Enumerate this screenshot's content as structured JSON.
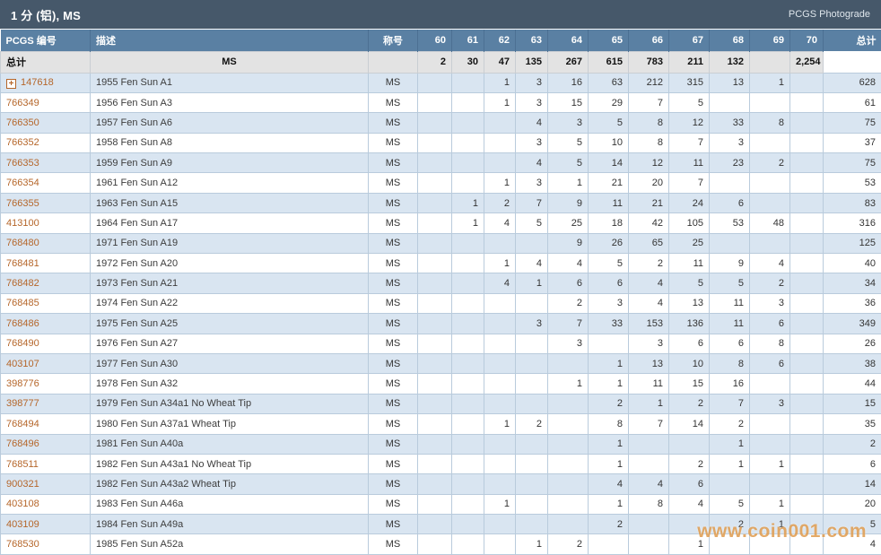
{
  "header": {
    "title": "1 分 (铝), MS",
    "right_label": "PCGS Photograde"
  },
  "icons": {
    "expander": "+"
  },
  "colors": {
    "title_bar": "#46586a",
    "column_header": "#5a80a3",
    "row_alt": "#d9e5f1",
    "totals_row": "#e3e3e3",
    "link": "#b5662a",
    "watermark": "#dc923e"
  },
  "watermark": "www.coin001.com",
  "table": {
    "columns": [
      "PCGS 编号",
      "描述",
      "称号",
      "60",
      "61",
      "62",
      "63",
      "64",
      "65",
      "66",
      "67",
      "68",
      "69",
      "70",
      "总计"
    ],
    "grade_labels": [
      "60",
      "61",
      "62",
      "63",
      "64",
      "65",
      "66",
      "67",
      "68",
      "69",
      "70"
    ],
    "totals": {
      "label": "总计",
      "designation": "MS",
      "values": [
        "",
        "2",
        "30",
        "47",
        "135",
        "267",
        "615",
        "783",
        "211",
        "132",
        ""
      ],
      "total": "2,254"
    },
    "rows": [
      {
        "pcgs": "147618",
        "expandable": true,
        "desc": "1955 Fen Sun A1",
        "designation": "MS",
        "values": [
          "",
          "",
          "1",
          "3",
          "16",
          "63",
          "212",
          "315",
          "13",
          "1",
          ""
        ],
        "total": "628"
      },
      {
        "pcgs": "766349",
        "expandable": false,
        "desc": "1956 Fen Sun A3",
        "designation": "MS",
        "values": [
          "",
          "",
          "1",
          "3",
          "15",
          "29",
          "7",
          "5",
          "",
          "",
          ""
        ],
        "total": "61"
      },
      {
        "pcgs": "766350",
        "expandable": false,
        "desc": "1957 Fen Sun A6",
        "designation": "MS",
        "values": [
          "",
          "",
          "",
          "4",
          "3",
          "5",
          "8",
          "12",
          "33",
          "8",
          ""
        ],
        "total": "75"
      },
      {
        "pcgs": "766352",
        "expandable": false,
        "desc": "1958 Fen Sun A8",
        "designation": "MS",
        "values": [
          "",
          "",
          "",
          "3",
          "5",
          "10",
          "8",
          "7",
          "3",
          "",
          ""
        ],
        "total": "37"
      },
      {
        "pcgs": "766353",
        "expandable": false,
        "desc": "1959 Fen Sun A9",
        "designation": "MS",
        "values": [
          "",
          "",
          "",
          "4",
          "5",
          "14",
          "12",
          "11",
          "23",
          "2",
          ""
        ],
        "total": "75"
      },
      {
        "pcgs": "766354",
        "expandable": false,
        "desc": "1961 Fen Sun A12",
        "designation": "MS",
        "values": [
          "",
          "",
          "1",
          "3",
          "1",
          "21",
          "20",
          "7",
          "",
          "",
          ""
        ],
        "total": "53"
      },
      {
        "pcgs": "766355",
        "expandable": false,
        "desc": "1963 Fen Sun A15",
        "designation": "MS",
        "values": [
          "",
          "1",
          "2",
          "7",
          "9",
          "11",
          "21",
          "24",
          "6",
          "",
          ""
        ],
        "total": "83"
      },
      {
        "pcgs": "413100",
        "expandable": false,
        "desc": "1964 Fen Sun A17",
        "designation": "MS",
        "values": [
          "",
          "1",
          "4",
          "5",
          "25",
          "18",
          "42",
          "105",
          "53",
          "48",
          ""
        ],
        "total": "316"
      },
      {
        "pcgs": "768480",
        "expandable": false,
        "desc": "1971 Fen Sun A19",
        "designation": "MS",
        "values": [
          "",
          "",
          "",
          "",
          "9",
          "26",
          "65",
          "25",
          "",
          "",
          ""
        ],
        "total": "125"
      },
      {
        "pcgs": "768481",
        "expandable": false,
        "desc": "1972 Fen Sun A20",
        "designation": "MS",
        "values": [
          "",
          "",
          "1",
          "4",
          "4",
          "5",
          "2",
          "11",
          "9",
          "4",
          ""
        ],
        "total": "40"
      },
      {
        "pcgs": "768482",
        "expandable": false,
        "desc": "1973 Fen Sun A21",
        "designation": "MS",
        "values": [
          "",
          "",
          "4",
          "1",
          "6",
          "6",
          "4",
          "5",
          "5",
          "2",
          ""
        ],
        "total": "34"
      },
      {
        "pcgs": "768485",
        "expandable": false,
        "desc": "1974 Fen Sun A22",
        "designation": "MS",
        "values": [
          "",
          "",
          "",
          "",
          "2",
          "3",
          "4",
          "13",
          "11",
          "3",
          ""
        ],
        "total": "36"
      },
      {
        "pcgs": "768486",
        "expandable": false,
        "desc": "1975 Fen Sun A25",
        "designation": "MS",
        "values": [
          "",
          "",
          "",
          "3",
          "7",
          "33",
          "153",
          "136",
          "11",
          "6",
          ""
        ],
        "total": "349"
      },
      {
        "pcgs": "768490",
        "expandable": false,
        "desc": "1976 Fen Sun A27",
        "designation": "MS",
        "values": [
          "",
          "",
          "",
          "",
          "3",
          "",
          "3",
          "6",
          "6",
          "8",
          ""
        ],
        "total": "26"
      },
      {
        "pcgs": "403107",
        "expandable": false,
        "desc": "1977 Fen Sun A30",
        "designation": "MS",
        "values": [
          "",
          "",
          "",
          "",
          "",
          "1",
          "13",
          "10",
          "8",
          "6",
          ""
        ],
        "total": "38"
      },
      {
        "pcgs": "398776",
        "expandable": false,
        "desc": "1978 Fen Sun A32",
        "designation": "MS",
        "values": [
          "",
          "",
          "",
          "",
          "1",
          "1",
          "11",
          "15",
          "16",
          "",
          ""
        ],
        "total": "44"
      },
      {
        "pcgs": "398777",
        "expandable": false,
        "desc": "1979 Fen Sun A34a1 No Wheat Tip",
        "designation": "MS",
        "values": [
          "",
          "",
          "",
          "",
          "",
          "2",
          "1",
          "2",
          "7",
          "3",
          ""
        ],
        "total": "15"
      },
      {
        "pcgs": "768494",
        "expandable": false,
        "desc": "1980 Fen Sun A37a1 Wheat Tip",
        "designation": "MS",
        "values": [
          "",
          "",
          "1",
          "2",
          "",
          "8",
          "7",
          "14",
          "2",
          "",
          ""
        ],
        "total": "35"
      },
      {
        "pcgs": "768496",
        "expandable": false,
        "desc": "1981 Fen Sun A40a",
        "designation": "MS",
        "values": [
          "",
          "",
          "",
          "",
          "",
          "1",
          "",
          "",
          "1",
          "",
          ""
        ],
        "total": "2"
      },
      {
        "pcgs": "768511",
        "expandable": false,
        "desc": "1982 Fen Sun A43a1 No Wheat Tip",
        "designation": "MS",
        "values": [
          "",
          "",
          "",
          "",
          "",
          "1",
          "",
          "2",
          "1",
          "1",
          ""
        ],
        "total": "6"
      },
      {
        "pcgs": "900321",
        "expandable": false,
        "desc": "1982 Fen Sun A43a2 Wheat Tip",
        "designation": "MS",
        "values": [
          "",
          "",
          "",
          "",
          "",
          "4",
          "4",
          "6",
          "",
          "",
          ""
        ],
        "total": "14"
      },
      {
        "pcgs": "403108",
        "expandable": false,
        "desc": "1983 Fen Sun A46a",
        "designation": "MS",
        "values": [
          "",
          "",
          "1",
          "",
          "",
          "1",
          "8",
          "4",
          "5",
          "1",
          ""
        ],
        "total": "20"
      },
      {
        "pcgs": "403109",
        "expandable": false,
        "desc": "1984 Fen Sun A49a",
        "designation": "MS",
        "values": [
          "",
          "",
          "",
          "",
          "",
          "2",
          "",
          "",
          "2",
          "1",
          ""
        ],
        "total": "5"
      },
      {
        "pcgs": "768530",
        "expandable": false,
        "desc": "1985 Fen Sun A52a",
        "designation": "MS",
        "values": [
          "",
          "",
          "",
          "1",
          "2",
          "",
          "",
          "1",
          "",
          "",
          ""
        ],
        "total": "4"
      }
    ]
  }
}
